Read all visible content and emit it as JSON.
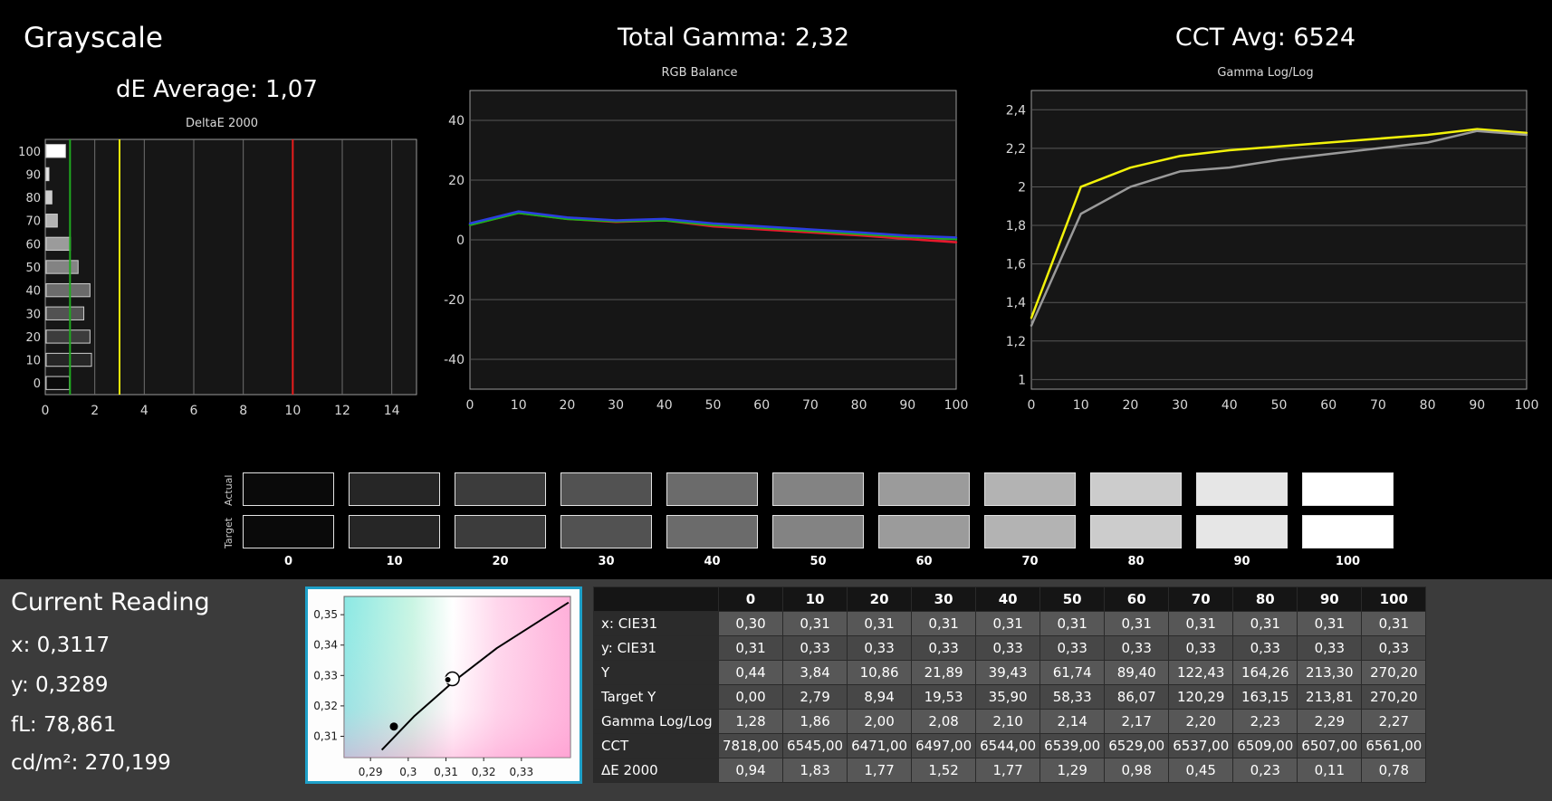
{
  "header": {
    "title": "Grayscale",
    "de_average": "dE Average: 1,07",
    "total_gamma": "Total Gamma: 2,32",
    "cct_avg": "CCT Avg: 6524"
  },
  "colors": {
    "background": "#000000",
    "bottom_background": "#3b3b3b",
    "cie_box_border": "#1ea0c8",
    "ref_green": "#1faa1f",
    "ref_yellow": "#f2f20a",
    "ref_red": "#e81c1c",
    "chart_bg": "#161616",
    "chart_border": "#9a9a9a",
    "gridline": "#565656"
  },
  "chart_data": [
    {
      "id": "deltae",
      "type": "bar",
      "orientation": "horizontal",
      "title": "DeltaE 2000",
      "categories": [
        100,
        90,
        80,
        70,
        60,
        50,
        40,
        30,
        20,
        10,
        0
      ],
      "values": [
        0.78,
        0.11,
        0.23,
        0.45,
        0.98,
        1.29,
        1.77,
        1.52,
        1.77,
        1.83,
        0.94
      ],
      "xlim": [
        0,
        15
      ],
      "xticks": [
        0,
        2,
        4,
        6,
        8,
        10,
        12,
        14
      ],
      "ref_lines": [
        {
          "x": 1,
          "color": "#1faa1f"
        },
        {
          "x": 3,
          "color": "#f2f20a"
        },
        {
          "x": 10,
          "color": "#e81c1c"
        }
      ]
    },
    {
      "id": "rgb_balance",
      "type": "line",
      "title": "RGB Balance",
      "x": [
        0,
        10,
        20,
        30,
        40,
        50,
        60,
        70,
        80,
        90,
        100
      ],
      "ylim": [
        -50,
        50
      ],
      "yticks": [
        {
          "v": 40,
          "l": "40"
        },
        {
          "v": 20,
          "l": "20"
        },
        {
          "v": 0,
          "l": "0"
        },
        {
          "v": -20,
          "l": "-20"
        },
        {
          "v": -40,
          "l": "-40"
        }
      ],
      "series": [
        {
          "name": "red",
          "color": "#e8192c",
          "values": [
            5,
            9,
            7,
            6,
            6.5,
            4.5,
            3.5,
            2.5,
            1.5,
            0.3,
            -0.8
          ]
        },
        {
          "name": "green",
          "color": "#18b418",
          "values": [
            5,
            9,
            7,
            6.2,
            6.5,
            5,
            4,
            3,
            2,
            1,
            0.3
          ]
        },
        {
          "name": "blue",
          "color": "#2b3de0",
          "values": [
            5.5,
            9.5,
            7.5,
            6.5,
            7,
            5.5,
            4.5,
            3.5,
            2.5,
            1.4,
            0.8
          ]
        }
      ]
    },
    {
      "id": "gamma_loglog",
      "type": "line",
      "title": "Gamma Log/Log",
      "x": [
        0,
        10,
        20,
        30,
        40,
        50,
        60,
        70,
        80,
        90,
        100
      ],
      "ylim": [
        0.95,
        2.5
      ],
      "yticks": [
        {
          "v": 1,
          "l": "1"
        },
        {
          "v": 1.2,
          "l": "1,2"
        },
        {
          "v": 1.4,
          "l": "1,4"
        },
        {
          "v": 1.6,
          "l": "1,6"
        },
        {
          "v": 1.8,
          "l": "1,8"
        },
        {
          "v": 2,
          "l": "2"
        },
        {
          "v": 2.2,
          "l": "2,2"
        },
        {
          "v": 2.4,
          "l": "2,4"
        }
      ],
      "series": [
        {
          "name": "target",
          "color": "#f2f20a",
          "values": [
            1.32,
            2.0,
            2.1,
            2.16,
            2.19,
            2.21,
            2.23,
            2.25,
            2.27,
            2.3,
            2.28
          ]
        },
        {
          "name": "measured",
          "color": "#9a9a9a",
          "values": [
            1.28,
            1.86,
            2.0,
            2.08,
            2.1,
            2.14,
            2.17,
            2.2,
            2.23,
            2.29,
            2.27
          ]
        }
      ]
    },
    {
      "id": "cie_xy",
      "type": "scatter",
      "title": "CIE xy chromaticity",
      "xlim": [
        0.283,
        0.343
      ],
      "ylim": [
        0.303,
        0.356
      ],
      "xticks": [
        {
          "v": 0.29,
          "l": "0,29"
        },
        {
          "v": 0.3,
          "l": "0,3"
        },
        {
          "v": 0.31,
          "l": "0,31"
        },
        {
          "v": 0.32,
          "l": "0,32"
        },
        {
          "v": 0.33,
          "l": "0,33"
        }
      ],
      "yticks": [
        {
          "v": 0.35,
          "l": "0,35"
        },
        {
          "v": 0.34,
          "l": "0,34"
        },
        {
          "v": 0.33,
          "l": "0,33"
        },
        {
          "v": 0.32,
          "l": "0,32"
        },
        {
          "v": 0.31,
          "l": "0,31"
        }
      ],
      "locus": [
        [
          0.293,
          0.3055
        ],
        [
          0.3015,
          0.3165
        ],
        [
          0.312,
          0.328
        ],
        [
          0.3235,
          0.339
        ],
        [
          0.3355,
          0.3485
        ],
        [
          0.3425,
          0.354
        ]
      ],
      "points": [
        {
          "x": 0.3117,
          "y": 0.3289,
          "marker": "target"
        },
        {
          "x": 0.2962,
          "y": 0.3132,
          "marker": "measured"
        }
      ]
    }
  ],
  "swatches": {
    "row_labels": [
      "Actual",
      "Target"
    ],
    "levels": [
      "0",
      "10",
      "20",
      "30",
      "40",
      "50",
      "60",
      "70",
      "80",
      "90",
      "100"
    ],
    "actual_colors": [
      "#0a0a0a",
      "#262626",
      "#3c3c3c",
      "#525252",
      "#6b6b6b",
      "#838383",
      "#9b9b9b",
      "#b3b3b3",
      "#cccccc",
      "#e6e6e6",
      "#ffffff"
    ],
    "target_colors": [
      "#0a0a0a",
      "#262626",
      "#3c3c3c",
      "#525252",
      "#6b6b6b",
      "#838383",
      "#9b9b9b",
      "#b3b3b3",
      "#cccccc",
      "#e6e6e6",
      "#ffffff"
    ]
  },
  "current_reading": {
    "title": "Current Reading",
    "lines": [
      "x: 0,3117",
      "y: 0,3289",
      "fL: 78,861",
      "cd/m²: 270,199"
    ]
  },
  "table": {
    "columns": [
      "0",
      "10",
      "20",
      "30",
      "40",
      "50",
      "60",
      "70",
      "80",
      "90",
      "100"
    ],
    "rows": [
      {
        "label": "x: CIE31",
        "values": [
          "0,30",
          "0,31",
          "0,31",
          "0,31",
          "0,31",
          "0,31",
          "0,31",
          "0,31",
          "0,31",
          "0,31",
          "0,31"
        ]
      },
      {
        "label": "y: CIE31",
        "values": [
          "0,31",
          "0,33",
          "0,33",
          "0,33",
          "0,33",
          "0,33",
          "0,33",
          "0,33",
          "0,33",
          "0,33",
          "0,33"
        ]
      },
      {
        "label": "Y",
        "values": [
          "0,44",
          "3,84",
          "10,86",
          "21,89",
          "39,43",
          "61,74",
          "89,40",
          "122,43",
          "164,26",
          "213,30",
          "270,20"
        ]
      },
      {
        "label": "Target Y",
        "values": [
          "0,00",
          "2,79",
          "8,94",
          "19,53",
          "35,90",
          "58,33",
          "86,07",
          "120,29",
          "163,15",
          "213,81",
          "270,20"
        ]
      },
      {
        "label": "Gamma Log/Log",
        "values": [
          "1,28",
          "1,86",
          "2,00",
          "2,08",
          "2,10",
          "2,14",
          "2,17",
          "2,20",
          "2,23",
          "2,29",
          "2,27"
        ]
      },
      {
        "label": "CCT",
        "values": [
          "7818,00",
          "6545,00",
          "6471,00",
          "6497,00",
          "6544,00",
          "6539,00",
          "6529,00",
          "6537,00",
          "6509,00",
          "6507,00",
          "6561,00"
        ]
      },
      {
        "label": "ΔE 2000",
        "values": [
          "0,94",
          "1,83",
          "1,77",
          "1,52",
          "1,77",
          "1,29",
          "0,98",
          "0,45",
          "0,23",
          "0,11",
          "0,78"
        ]
      }
    ]
  }
}
